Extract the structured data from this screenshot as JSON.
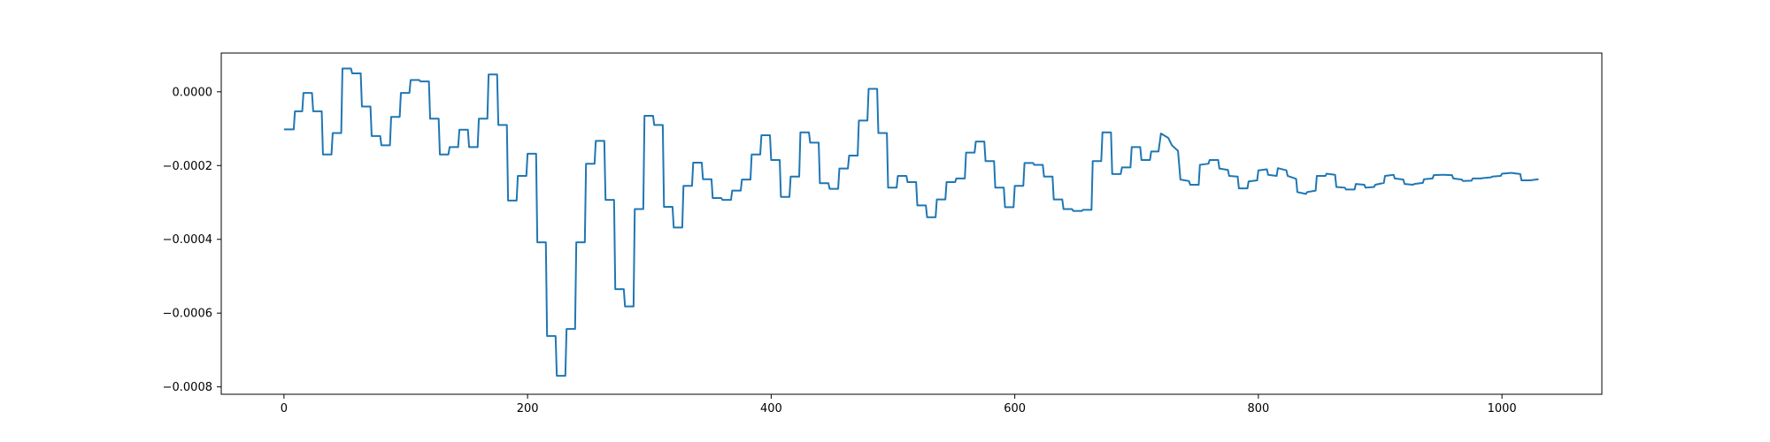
{
  "chart_data": {
    "type": "line",
    "title": "",
    "xlabel": "",
    "ylabel": "",
    "xlim": [
      -51.5,
      1082
    ],
    "ylim": [
      -0.00082,
      0.000105
    ],
    "grid": false,
    "legend": "none",
    "x_ticks": [
      0,
      200,
      400,
      600,
      800,
      1000
    ],
    "x_tick_labels": [
      "0",
      "200",
      "400",
      "600",
      "800",
      "1000"
    ],
    "y_ticks": [
      0.0,
      -0.0002,
      -0.0004,
      -0.0006,
      -0.0008
    ],
    "y_tick_labels": [
      "0.0000",
      "−0.0002",
      "−0.0004",
      "−0.0006",
      "−0.0008"
    ],
    "series": [
      {
        "color": "#1f77b4",
        "points": [
          [
            0,
            -0.000102
          ],
          [
            8,
            -0.000102
          ],
          [
            9,
            -5.3e-05
          ],
          [
            15,
            -5.3e-05
          ],
          [
            16,
            -3e-06
          ],
          [
            23,
            -3e-06
          ],
          [
            24,
            -5.3e-05
          ],
          [
            31,
            -5.3e-05
          ],
          [
            32,
            -0.00017
          ],
          [
            39,
            -0.00017
          ],
          [
            40,
            -0.000112
          ],
          [
            47,
            -0.000112
          ],
          [
            48,
            6.3e-05
          ],
          [
            55,
            6.3e-05
          ],
          [
            56,
            5e-05
          ],
          [
            63,
            5e-05
          ],
          [
            64,
            -4e-05
          ],
          [
            71,
            -4e-05
          ],
          [
            72,
            -0.00012
          ],
          [
            79,
            -0.00012
          ],
          [
            80,
            -0.000145
          ],
          [
            87,
            -0.000145
          ],
          [
            88,
            -6.8e-05
          ],
          [
            95,
            -6.8e-05
          ],
          [
            96,
            -3e-06
          ],
          [
            103,
            -3e-06
          ],
          [
            104,
            3.2e-05
          ],
          [
            111,
            3.2e-05
          ],
          [
            112,
            2.8e-05
          ],
          [
            119,
            2.8e-05
          ],
          [
            120,
            -7.3e-05
          ],
          [
            127,
            -7.3e-05
          ],
          [
            128,
            -0.00017
          ],
          [
            135,
            -0.00017
          ],
          [
            136,
            -0.00015
          ],
          [
            143,
            -0.00015
          ],
          [
            144,
            -0.000103
          ],
          [
            151,
            -0.000103
          ],
          [
            152,
            -0.00015
          ],
          [
            159,
            -0.00015
          ],
          [
            160,
            -7.3e-05
          ],
          [
            167,
            -7.3e-05
          ],
          [
            168,
            4.7e-05
          ],
          [
            175,
            4.7e-05
          ],
          [
            176,
            -9e-05
          ],
          [
            183,
            -9e-05
          ],
          [
            184,
            -0.000295
          ],
          [
            191,
            -0.000295
          ],
          [
            192,
            -0.000228
          ],
          [
            199,
            -0.000228
          ],
          [
            200,
            -0.000168
          ],
          [
            207,
            -0.000168
          ],
          [
            208,
            -0.000408
          ],
          [
            215,
            -0.000408
          ],
          [
            216,
            -0.000662
          ],
          [
            223,
            -0.000662
          ],
          [
            224,
            -0.00077
          ],
          [
            231,
            -0.00077
          ],
          [
            232,
            -0.000643
          ],
          [
            239,
            -0.000643
          ],
          [
            240,
            -0.000408
          ],
          [
            247,
            -0.000408
          ],
          [
            248,
            -0.000195
          ],
          [
            255,
            -0.000195
          ],
          [
            256,
            -0.000133
          ],
          [
            263,
            -0.000133
          ],
          [
            264,
            -0.000293
          ],
          [
            271,
            -0.000293
          ],
          [
            272,
            -0.000535
          ],
          [
            279,
            -0.000535
          ],
          [
            280,
            -0.000582
          ],
          [
            287,
            -0.000582
          ],
          [
            288,
            -0.000318
          ],
          [
            295,
            -0.000318
          ],
          [
            296,
            -6.5e-05
          ],
          [
            303,
            -6.5e-05
          ],
          [
            304,
            -9e-05
          ],
          [
            311,
            -9e-05
          ],
          [
            312,
            -0.000312
          ],
          [
            319,
            -0.000312
          ],
          [
            320,
            -0.000368
          ],
          [
            327,
            -0.000368
          ],
          [
            328,
            -0.000255
          ],
          [
            335,
            -0.000255
          ],
          [
            336,
            -0.000192
          ],
          [
            343,
            -0.000192
          ],
          [
            344,
            -0.000237
          ],
          [
            351,
            -0.000237
          ],
          [
            352,
            -0.000288
          ],
          [
            359,
            -0.000288
          ],
          [
            360,
            -0.000293
          ],
          [
            367,
            -0.000293
          ],
          [
            368,
            -0.000268
          ],
          [
            375,
            -0.000268
          ],
          [
            376,
            -0.000238
          ],
          [
            383,
            -0.000238
          ],
          [
            384,
            -0.00017
          ],
          [
            391,
            -0.00017
          ],
          [
            392,
            -0.000118
          ],
          [
            399,
            -0.000118
          ],
          [
            400,
            -0.000185
          ],
          [
            407,
            -0.000185
          ],
          [
            408,
            -0.000285
          ],
          [
            415,
            -0.000285
          ],
          [
            416,
            -0.00023
          ],
          [
            423,
            -0.00023
          ],
          [
            424,
            -0.00011
          ],
          [
            431,
            -0.00011
          ],
          [
            432,
            -0.000138
          ],
          [
            439,
            -0.000138
          ],
          [
            440,
            -0.000248
          ],
          [
            447,
            -0.000248
          ],
          [
            448,
            -0.000263
          ],
          [
            455,
            -0.000263
          ],
          [
            456,
            -0.000208
          ],
          [
            463,
            -0.000208
          ],
          [
            464,
            -0.000173
          ],
          [
            471,
            -0.000173
          ],
          [
            472,
            -7.8e-05
          ],
          [
            479,
            -7.8e-05
          ],
          [
            480,
            8e-06
          ],
          [
            487,
            8e-06
          ],
          [
            488,
            -0.000112
          ],
          [
            495,
            -0.000112
          ],
          [
            496,
            -0.00026
          ],
          [
            503,
            -0.00026
          ],
          [
            504,
            -0.000228
          ],
          [
            511,
            -0.000228
          ],
          [
            512,
            -0.000245
          ],
          [
            519,
            -0.000245
          ],
          [
            520,
            -0.000308
          ],
          [
            527,
            -0.000308
          ],
          [
            528,
            -0.00034
          ],
          [
            535,
            -0.00034
          ],
          [
            536,
            -0.000292
          ],
          [
            543,
            -0.000292
          ],
          [
            544,
            -0.000245
          ],
          [
            551,
            -0.000245
          ],
          [
            552,
            -0.000235
          ],
          [
            559,
            -0.000235
          ],
          [
            560,
            -0.000165
          ],
          [
            567,
            -0.000165
          ],
          [
            568,
            -0.000135
          ],
          [
            575,
            -0.000135
          ],
          [
            576,
            -0.000188
          ],
          [
            583,
            -0.000188
          ],
          [
            584,
            -0.00026
          ],
          [
            591,
            -0.00026
          ],
          [
            592,
            -0.000313
          ],
          [
            599,
            -0.000313
          ],
          [
            600,
            -0.000255
          ],
          [
            607,
            -0.000255
          ],
          [
            608,
            -0.000193
          ],
          [
            615,
            -0.000193
          ],
          [
            616,
            -0.000198
          ],
          [
            623,
            -0.000198
          ],
          [
            624,
            -0.00023
          ],
          [
            631,
            -0.00023
          ],
          [
            632,
            -0.000292
          ],
          [
            639,
            -0.000292
          ],
          [
            640,
            -0.000318
          ],
          [
            647,
            -0.000318
          ],
          [
            648,
            -0.000323
          ],
          [
            655,
            -0.000323
          ],
          [
            656,
            -0.00032
          ],
          [
            663,
            -0.00032
          ],
          [
            664,
            -0.000188
          ],
          [
            671,
            -0.000188
          ],
          [
            672,
            -0.00011
          ],
          [
            679,
            -0.00011
          ],
          [
            680,
            -0.000223
          ],
          [
            687,
            -0.000223
          ],
          [
            688,
            -0.000205
          ],
          [
            695,
            -0.000205
          ],
          [
            696,
            -0.00015
          ],
          [
            703,
            -0.00015
          ],
          [
            704,
            -0.000185
          ],
          [
            711,
            -0.000185
          ],
          [
            712,
            -0.000162
          ],
          [
            718,
            -0.000162
          ],
          [
            720,
            -0.000113
          ],
          [
            726,
            -0.000125
          ],
          [
            729,
            -0.000145
          ],
          [
            734,
            -0.00016
          ],
          [
            736,
            -0.000238
          ],
          [
            743,
            -0.000242
          ],
          [
            744,
            -0.000252
          ],
          [
            751,
            -0.000252
          ],
          [
            752,
            -0.000198
          ],
          [
            759,
            -0.000195
          ],
          [
            760,
            -0.000185
          ],
          [
            767,
            -0.000185
          ],
          [
            768,
            -0.000208
          ],
          [
            775,
            -0.000212
          ],
          [
            776,
            -0.000228
          ],
          [
            783,
            -0.00023
          ],
          [
            784,
            -0.000262
          ],
          [
            791,
            -0.000262
          ],
          [
            792,
            -0.000243
          ],
          [
            799,
            -0.00024
          ],
          [
            800,
            -0.000213
          ],
          [
            807,
            -0.00021
          ],
          [
            808,
            -0.000225
          ],
          [
            815,
            -0.000228
          ],
          [
            816,
            -0.000207
          ],
          [
            823,
            -0.000213
          ],
          [
            824,
            -0.000228
          ],
          [
            831,
            -0.000236
          ],
          [
            832,
            -0.000272
          ],
          [
            839,
            -0.000277
          ],
          [
            840,
            -0.000272
          ],
          [
            847,
            -0.000268
          ],
          [
            848,
            -0.000228
          ],
          [
            855,
            -0.000228
          ],
          [
            856,
            -0.000222
          ],
          [
            863,
            -0.000225
          ],
          [
            864,
            -0.000258
          ],
          [
            871,
            -0.00026
          ],
          [
            872,
            -0.000265
          ],
          [
            879,
            -0.000265
          ],
          [
            880,
            -0.00025
          ],
          [
            887,
            -0.000252
          ],
          [
            888,
            -0.00026
          ],
          [
            895,
            -0.000258
          ],
          [
            896,
            -0.000252
          ],
          [
            903,
            -0.000247
          ],
          [
            904,
            -0.000228
          ],
          [
            911,
            -0.000225
          ],
          [
            912,
            -0.000235
          ],
          [
            919,
            -0.000238
          ],
          [
            920,
            -0.00025
          ],
          [
            927,
            -0.000252
          ],
          [
            928,
            -0.00025
          ],
          [
            935,
            -0.000247
          ],
          [
            936,
            -0.000237
          ],
          [
            943,
            -0.000235
          ],
          [
            944,
            -0.000226
          ],
          [
            951,
            -0.000225
          ],
          [
            952,
            -0.000225
          ],
          [
            959,
            -0.000226
          ],
          [
            960,
            -0.000235
          ],
          [
            967,
            -0.000238
          ],
          [
            968,
            -0.000242
          ],
          [
            975,
            -0.000241
          ],
          [
            976,
            -0.000235
          ],
          [
            983,
            -0.000235
          ],
          [
            984,
            -0.000234
          ],
          [
            991,
            -0.000232
          ],
          [
            992,
            -0.00023
          ],
          [
            999,
            -0.000228
          ],
          [
            1000,
            -0.000222
          ],
          [
            1007,
            -0.00022
          ],
          [
            1008,
            -0.00022
          ],
          [
            1015,
            -0.000223
          ],
          [
            1016,
            -0.00024
          ],
          [
            1023,
            -0.00024
          ],
          [
            1030,
            -0.000237
          ]
        ]
      }
    ]
  }
}
